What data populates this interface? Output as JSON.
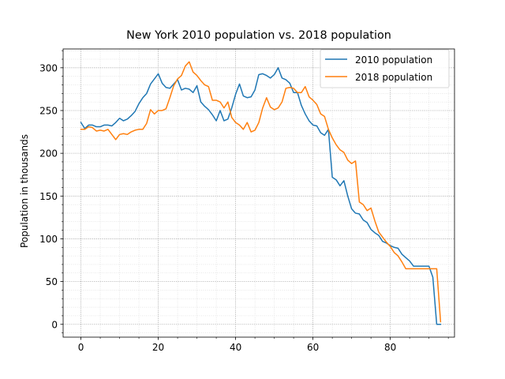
{
  "chart_data": {
    "type": "line",
    "title": "New York 2010 population vs. 2018 population",
    "xlabel": "",
    "ylabel": "Population in thousands",
    "xlim": [
      -4.6,
      96.6
    ],
    "ylim": [
      -15,
      322
    ],
    "x_ticks": [
      0,
      20,
      40,
      60,
      80
    ],
    "y_ticks": [
      0,
      50,
      100,
      150,
      200,
      250,
      300
    ],
    "grid": true,
    "grid_minor": true,
    "legend_position": "top-right",
    "series": [
      {
        "name": "2010 population",
        "color": "#1f77b4",
        "x_start": 0,
        "values": [
          236,
          229,
          233,
          233,
          231,
          231,
          233,
          233,
          232,
          236,
          241,
          238,
          240,
          244,
          249,
          258,
          265,
          270,
          281,
          287,
          293,
          282,
          277,
          276,
          281,
          286,
          274,
          276,
          275,
          271,
          279,
          260,
          255,
          251,
          245,
          238,
          250,
          238,
          240,
          253,
          269,
          281,
          267,
          265,
          266,
          274,
          292,
          293,
          291,
          288,
          292,
          300,
          288,
          286,
          282,
          271,
          271,
          256,
          246,
          238,
          233,
          232,
          224,
          221,
          228,
          172,
          169,
          162,
          168,
          150,
          135,
          130,
          129,
          122,
          119,
          111,
          107,
          104,
          97,
          95,
          92,
          90,
          89,
          82,
          78,
          74,
          68,
          68,
          68,
          68,
          68,
          55,
          0,
          0
        ]
      },
      {
        "name": "2018 population",
        "color": "#ff7f0e",
        "x_start": 0,
        "values": [
          228,
          228,
          231,
          230,
          226,
          227,
          226,
          228,
          222,
          216,
          222,
          223,
          222,
          225,
          227,
          228,
          228,
          235,
          251,
          246,
          250,
          250,
          252,
          265,
          279,
          287,
          291,
          302,
          307,
          295,
          291,
          285,
          280,
          278,
          262,
          262,
          260,
          253,
          260,
          242,
          236,
          233,
          228,
          236,
          225,
          227,
          236,
          253,
          265,
          254,
          251,
          253,
          260,
          276,
          277,
          276,
          271,
          271,
          278,
          266,
          262,
          257,
          246,
          243,
          228,
          218,
          210,
          204,
          201,
          192,
          188,
          191,
          143,
          140,
          133,
          136,
          121,
          108,
          102,
          96,
          91,
          84,
          80,
          73,
          65,
          65,
          65,
          65,
          65,
          65,
          65,
          65,
          65,
          3
        ]
      }
    ]
  }
}
